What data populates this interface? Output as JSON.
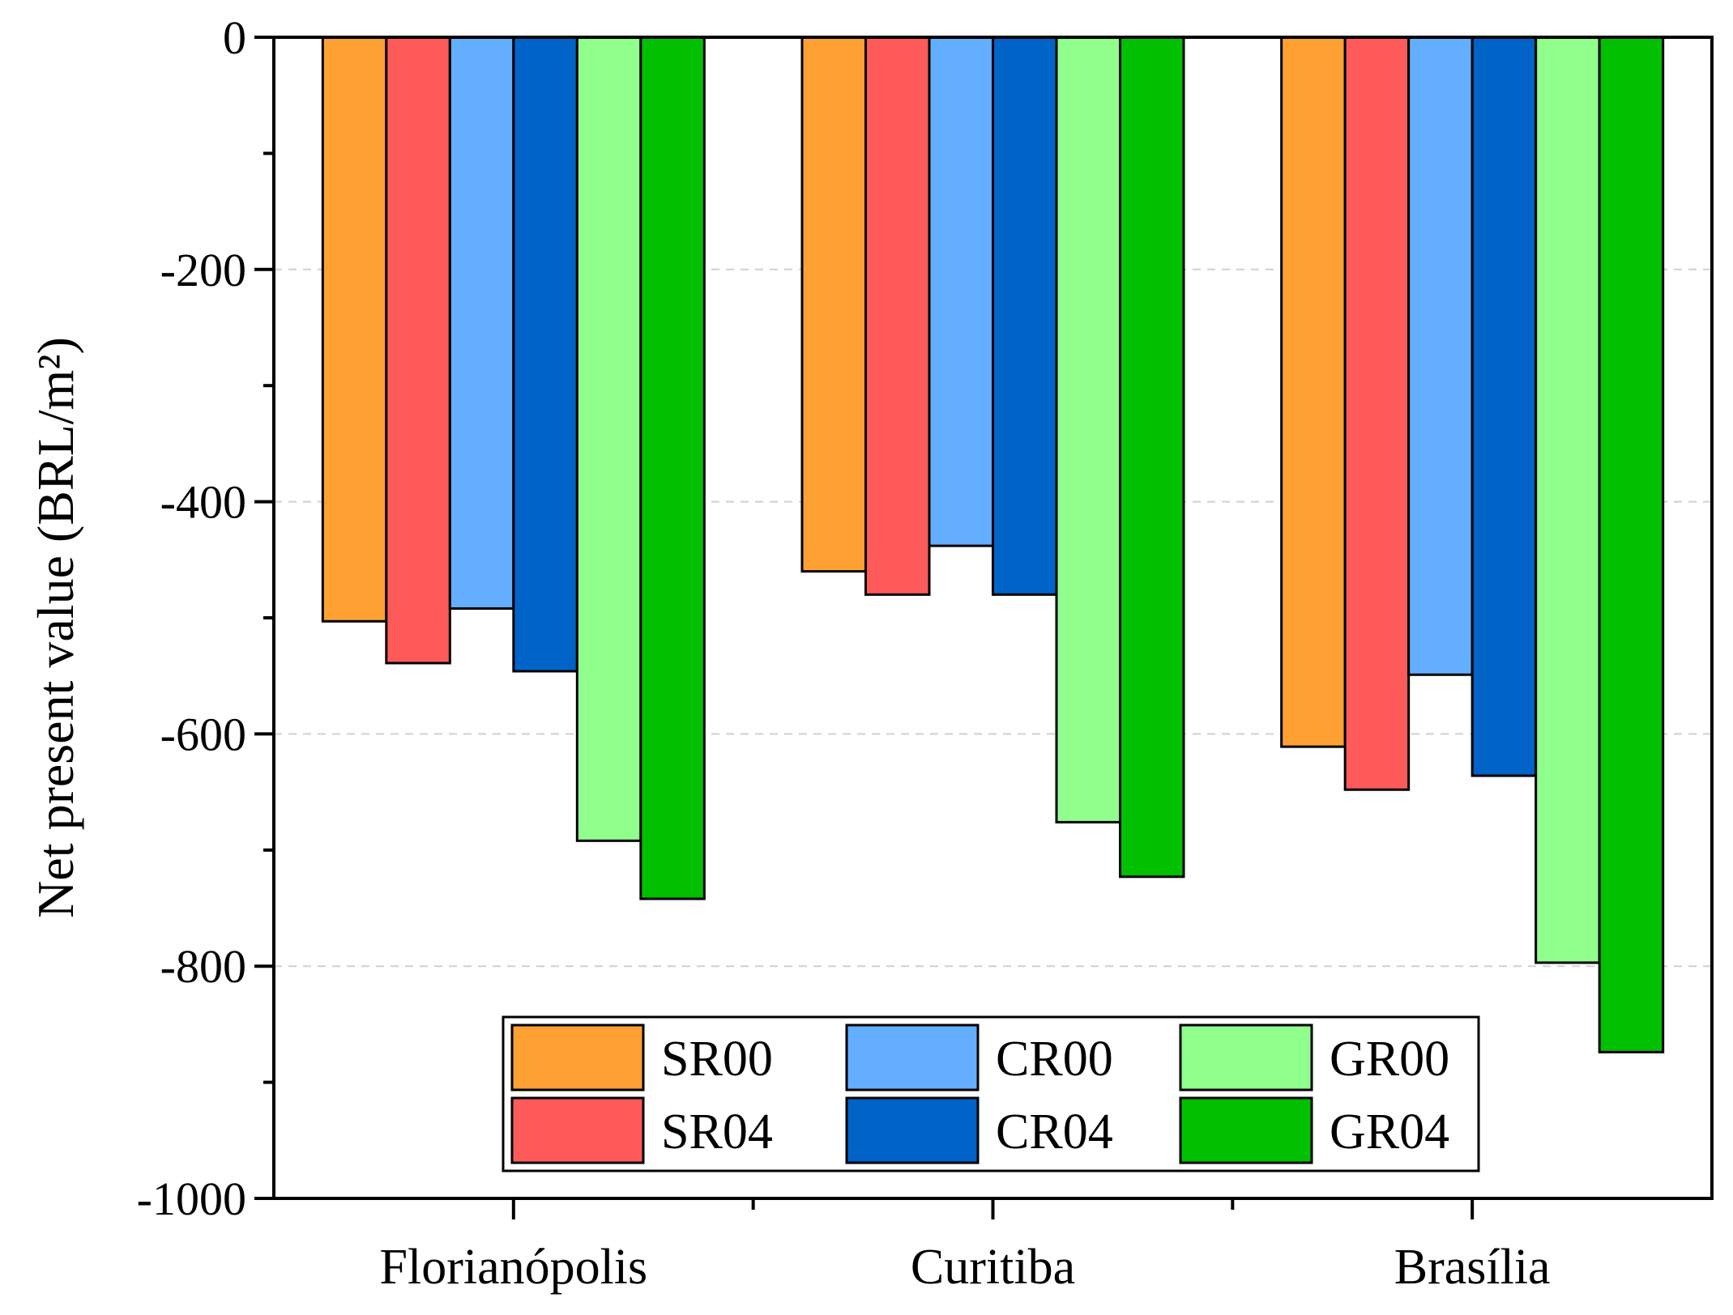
{
  "chart_data": {
    "type": "bar",
    "title": "",
    "xlabel": "",
    "ylabel": "Net present value (BRL/m²)",
    "ylim": [
      -1000,
      0
    ],
    "yticks": [
      0,
      -200,
      -400,
      -600,
      -800,
      -1000
    ],
    "ytick_labels": [
      "0",
      "-200",
      "-400",
      "-600",
      "-800",
      "-1000"
    ],
    "grid": "horizontal dashed",
    "categories": [
      "Florianópolis",
      "Curitiba",
      "Brasília"
    ],
    "series": [
      {
        "name": "SR00",
        "color": "#FFA033",
        "values": [
          -503,
          -460,
          -611
        ]
      },
      {
        "name": "SR04",
        "color": "#FF5A5A",
        "values": [
          -539,
          -480,
          -648
        ]
      },
      {
        "name": "CR00",
        "color": "#63AEFF",
        "values": [
          -492,
          -438,
          -549
        ]
      },
      {
        "name": "CR04",
        "color": "#0063C8",
        "values": [
          -546,
          -480,
          -636
        ]
      },
      {
        "name": "GR00",
        "color": "#90FF8C",
        "values": [
          -692,
          -676,
          -797
        ]
      },
      {
        "name": "GR04",
        "color": "#00C000",
        "values": [
          -742,
          -723,
          -874
        ]
      }
    ],
    "legend": {
      "placement": "bottom-center",
      "columns": 3
    }
  }
}
